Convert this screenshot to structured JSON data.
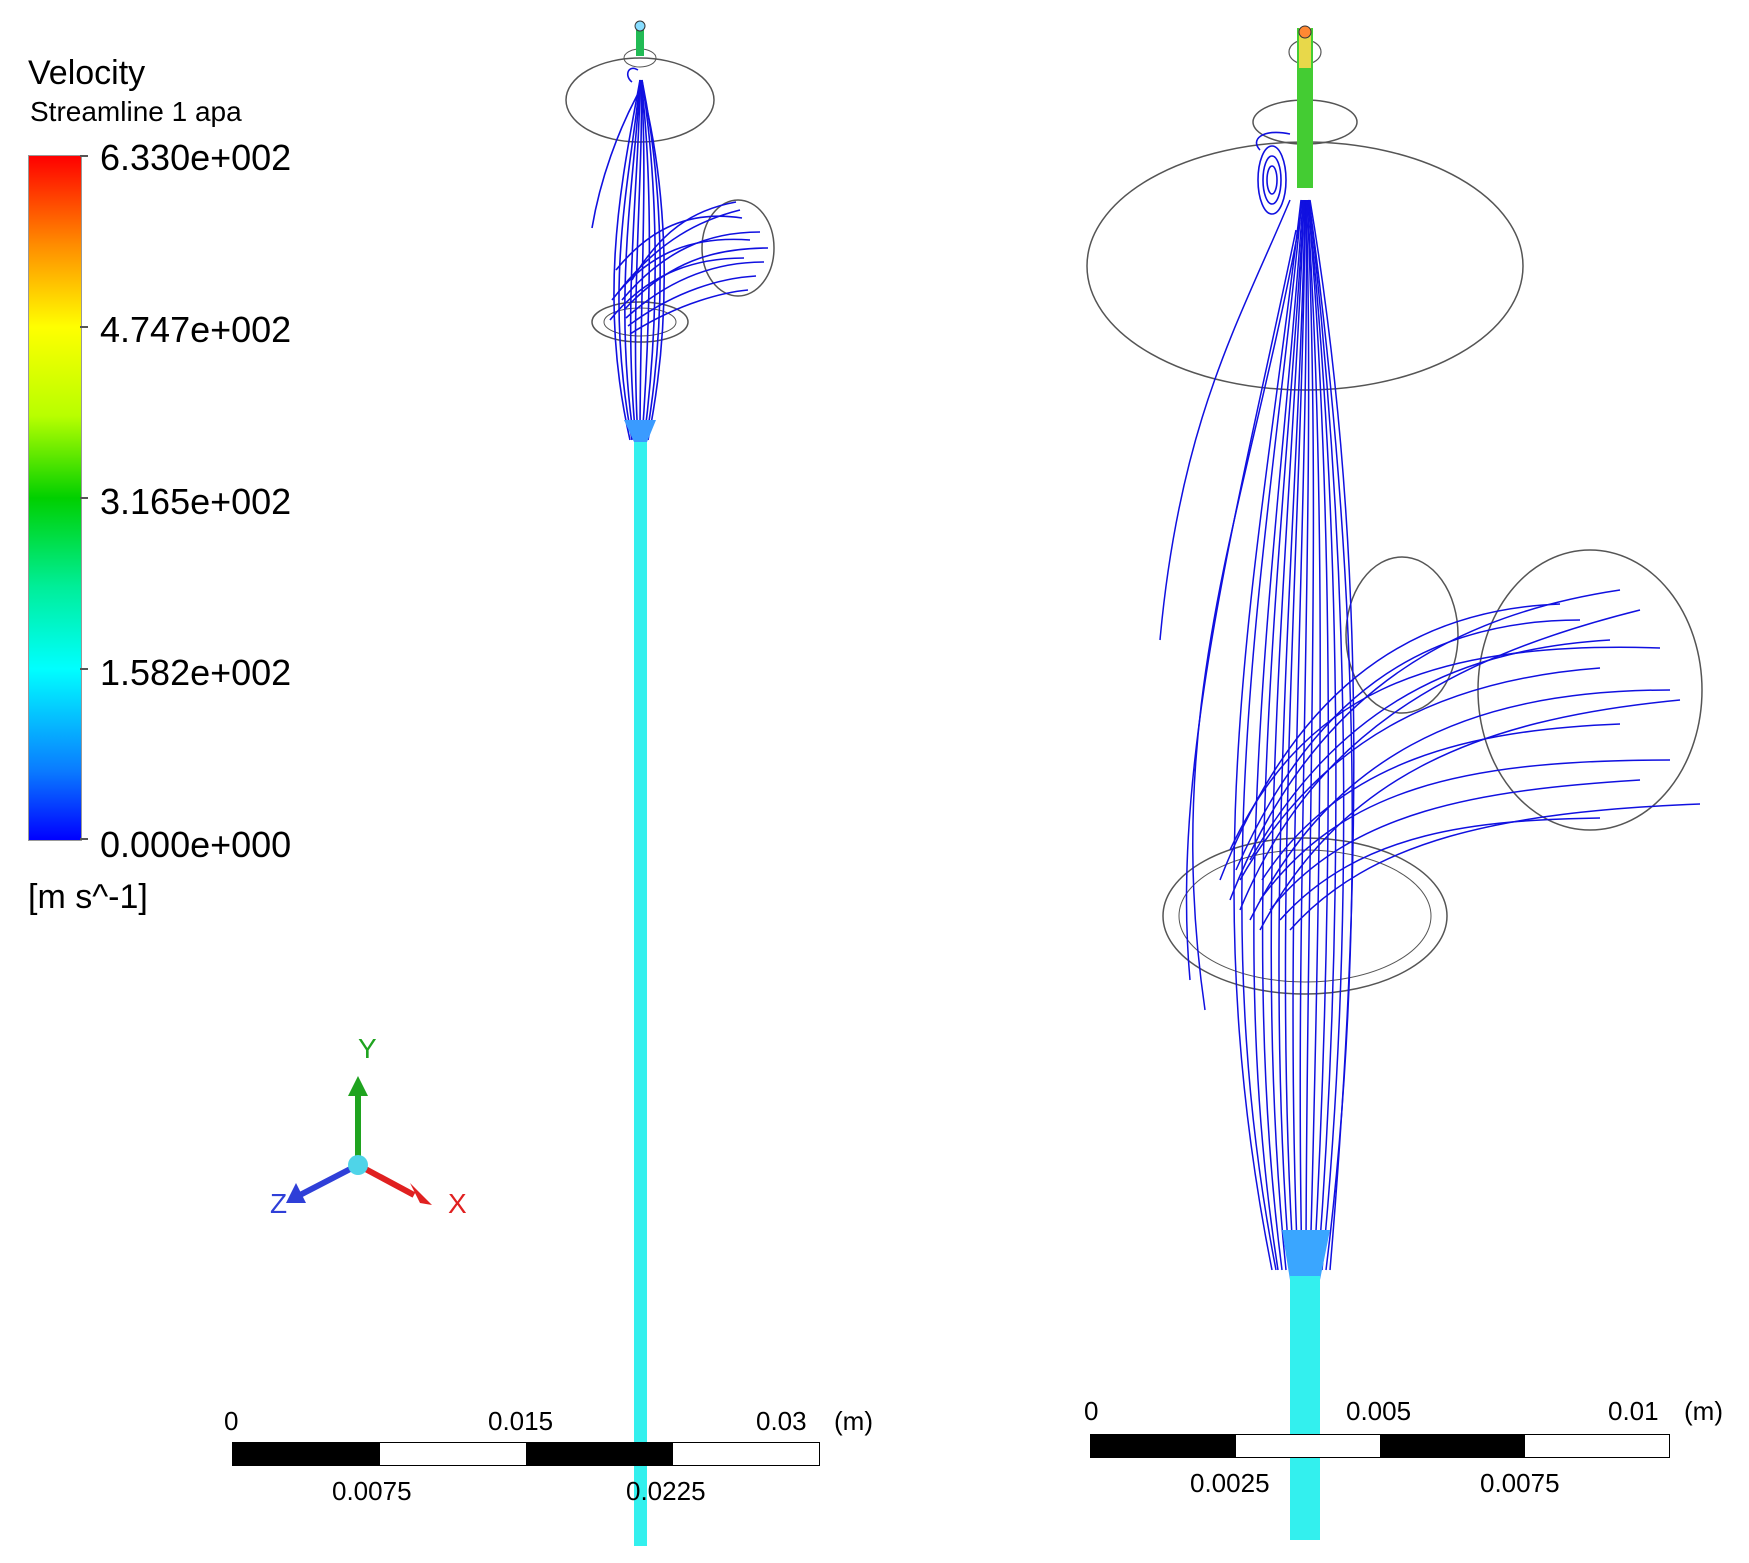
{
  "legend": {
    "title": "Velocity",
    "subtitle": "Streamline 1 apa",
    "ticks": [
      "6.330e+002",
      "4.747e+002",
      "3.165e+002",
      "1.582e+002",
      "0.000e+000"
    ],
    "units": "[m s^-1]",
    "colors": [
      "#0000ff",
      "#00ffff",
      "#00d000",
      "#ffff00",
      "#ff0000"
    ]
  },
  "triad": {
    "y_label": "Y",
    "z_label": "Z",
    "x_label": "X",
    "y_color": "#1fa31f",
    "z_color": "#2f3fd8",
    "x_color": "#e02020"
  },
  "scale_left": {
    "top_labels": [
      "0",
      "0.015",
      "0.03",
      "(m)"
    ],
    "bottom_labels": [
      "0.0075",
      "0.0225"
    ]
  },
  "scale_right": {
    "top_labels": [
      "0",
      "0.005",
      "0.01",
      "(m)"
    ],
    "bottom_labels": [
      "0.0025",
      "0.0075"
    ]
  },
  "colors": {
    "streamline": "#1010e0",
    "jet": "#33f0ee",
    "outline": "#555555"
  }
}
